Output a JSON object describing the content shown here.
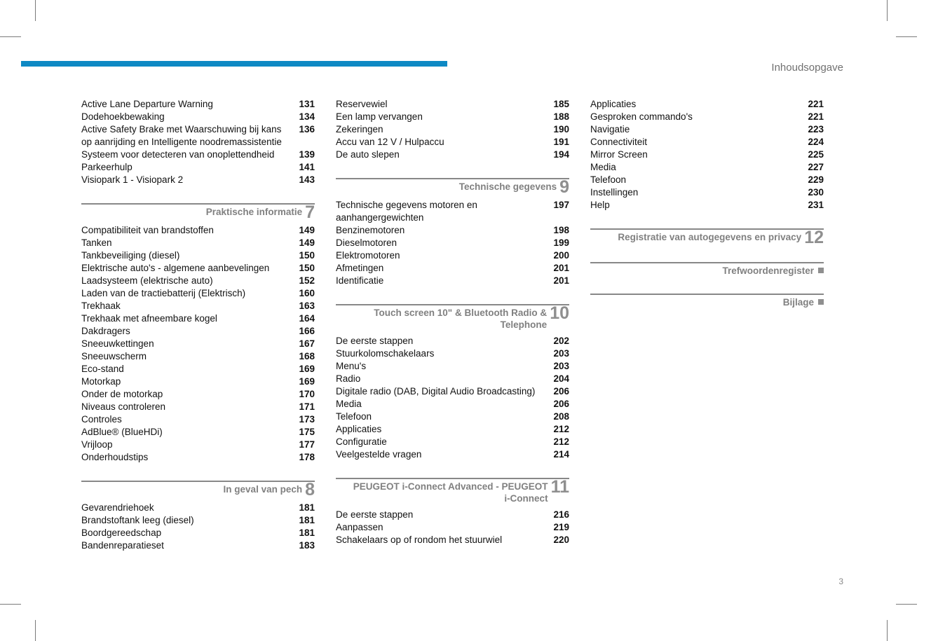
{
  "header": {
    "title": "Inhoudsopgave"
  },
  "page_number": "3",
  "style": {
    "blue_bar_color": "#0e89c4",
    "section_rule_color": "#888888",
    "section_title_color": "#808080",
    "section_num_color": "#8f8f8f",
    "text_color": "#111111",
    "header_color": "#707070"
  },
  "columns": [
    {
      "initial_entries": [
        {
          "label": "Active Lane Departure Warning",
          "page": "131"
        },
        {
          "label": "Dodehoekbewaking",
          "page": "134"
        },
        {
          "label": "Active Safety Brake met Waarschuwing bij kans op aanrijding en Intelligente noodremassistentie",
          "page": "136"
        },
        {
          "label": "Systeem voor detecteren van onoplettendheid",
          "page": "139"
        },
        {
          "label": "Parkeerhulp",
          "page": "141"
        },
        {
          "label": "Visiopark 1 - Visiopark 2",
          "page": "143"
        }
      ],
      "sections": [
        {
          "title": "Praktische informatie",
          "num": "7",
          "entries": [
            {
              "label": "Compatibiliteit van brandstoffen",
              "page": "149"
            },
            {
              "label": "Tanken",
              "page": "149"
            },
            {
              "label": "Tankbeveiliging (diesel)",
              "page": "150"
            },
            {
              "label": "Elektrische auto's - algemene aanbevelingen",
              "page": "150"
            },
            {
              "label": "Laadsysteem (elektrische auto)",
              "page": "152"
            },
            {
              "label": "Laden van de tractiebatterij (Elektrisch)",
              "page": "160"
            },
            {
              "label": "Trekhaak",
              "page": "163"
            },
            {
              "label": "Trekhaak met afneembare kogel",
              "page": "164"
            },
            {
              "label": "Dakdragers",
              "page": "166"
            },
            {
              "label": "Sneeuwkettingen",
              "page": "167"
            },
            {
              "label": "Sneeuwscherm",
              "page": "168"
            },
            {
              "label": "Eco-stand",
              "page": "169"
            },
            {
              "label": "Motorkap",
              "page": "169"
            },
            {
              "label": "Onder de motorkap",
              "page": "170"
            },
            {
              "label": "Niveaus controleren",
              "page": "171"
            },
            {
              "label": "Controles",
              "page": "173"
            },
            {
              "label": "AdBlue® (BlueHDi)",
              "page": "175"
            },
            {
              "label": "Vrijloop",
              "page": "177"
            },
            {
              "label": "Onderhoudstips",
              "page": "178"
            }
          ]
        },
        {
          "title": "In geval van pech",
          "num": "8",
          "entries": [
            {
              "label": "Gevarendriehoek",
              "page": "181"
            },
            {
              "label": "Brandstoftank leeg (diesel)",
              "page": "181"
            },
            {
              "label": "Boordgereedschap",
              "page": "181"
            },
            {
              "label": "Bandenreparatieset",
              "page": "183"
            }
          ]
        }
      ]
    },
    {
      "initial_entries": [
        {
          "label": "Reservewiel",
          "page": "185"
        },
        {
          "label": "Een lamp vervangen",
          "page": "188"
        },
        {
          "label": "Zekeringen",
          "page": "190"
        },
        {
          "label": "Accu van 12 V / Hulpaccu",
          "page": "191"
        },
        {
          "label": "De auto slepen",
          "page": "194"
        }
      ],
      "sections": [
        {
          "title": "Technische gegevens",
          "num": "9",
          "entries": [
            {
              "label": "Technische gegevens motoren en aanhangergewichten",
              "page": "197"
            },
            {
              "label": "Benzinemotoren",
              "page": "198"
            },
            {
              "label": "Dieselmotoren",
              "page": "199"
            },
            {
              "label": "Elektromotoren",
              "page": "200"
            },
            {
              "label": "Afmetingen",
              "page": "201"
            },
            {
              "label": "Identificatie",
              "page": "201"
            }
          ]
        },
        {
          "title": "Touch screen 10\" & Bluetooth Radio & Telephone",
          "num": "10",
          "entries": [
            {
              "label": "De eerste stappen",
              "page": "202"
            },
            {
              "label": "Stuurkolomschakelaars",
              "page": "203"
            },
            {
              "label": "Menu's",
              "page": "203"
            },
            {
              "label": "Radio",
              "page": "204"
            },
            {
              "label": "Digitale radio (DAB, Digital Audio Broadcasting)",
              "page": "206"
            },
            {
              "label": "Media",
              "page": "206"
            },
            {
              "label": "Telefoon",
              "page": "208"
            },
            {
              "label": "Applicaties",
              "page": "212"
            },
            {
              "label": "Configuratie",
              "page": "212"
            },
            {
              "label": "Veelgestelde vragen",
              "page": "214"
            }
          ]
        },
        {
          "title": "PEUGEOT i-Connect Advanced - PEUGEOT i-Connect",
          "num": "11",
          "entries": [
            {
              "label": "De eerste stappen",
              "page": "216"
            },
            {
              "label": "Aanpassen",
              "page": "219"
            },
            {
              "label": "Schakelaars op of rondom het stuurwiel",
              "page": "220"
            }
          ]
        }
      ]
    },
    {
      "initial_entries": [
        {
          "label": "Applicaties",
          "page": "221"
        },
        {
          "label": "Gesproken commando's",
          "page": "221"
        },
        {
          "label": "Navigatie",
          "page": "223"
        },
        {
          "label": "Connectiviteit",
          "page": "224"
        },
        {
          "label": "Mirror Screen",
          "page": "225"
        },
        {
          "label": "Media",
          "page": "227"
        },
        {
          "label": "Telefoon",
          "page": "229"
        },
        {
          "label": "Instellingen",
          "page": "230"
        },
        {
          "label": "Help",
          "page": "231"
        }
      ],
      "sections": [
        {
          "title": "Registratie van autogegevens en privacy",
          "num": "12",
          "entries": []
        },
        {
          "title": "Trefwoordenregister",
          "square": true,
          "entries": []
        },
        {
          "title": "Bijlage",
          "square": true,
          "entries": []
        }
      ]
    }
  ]
}
